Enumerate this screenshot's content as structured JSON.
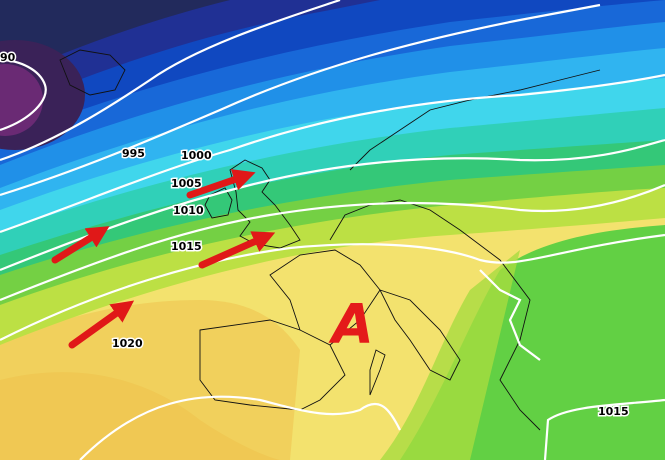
{
  "isobar_labels": [
    "90",
    "995",
    "1000",
    "1005",
    "1010",
    "1015",
    "1020",
    "1015"
  ],
  "pressure_center": "A"
}
